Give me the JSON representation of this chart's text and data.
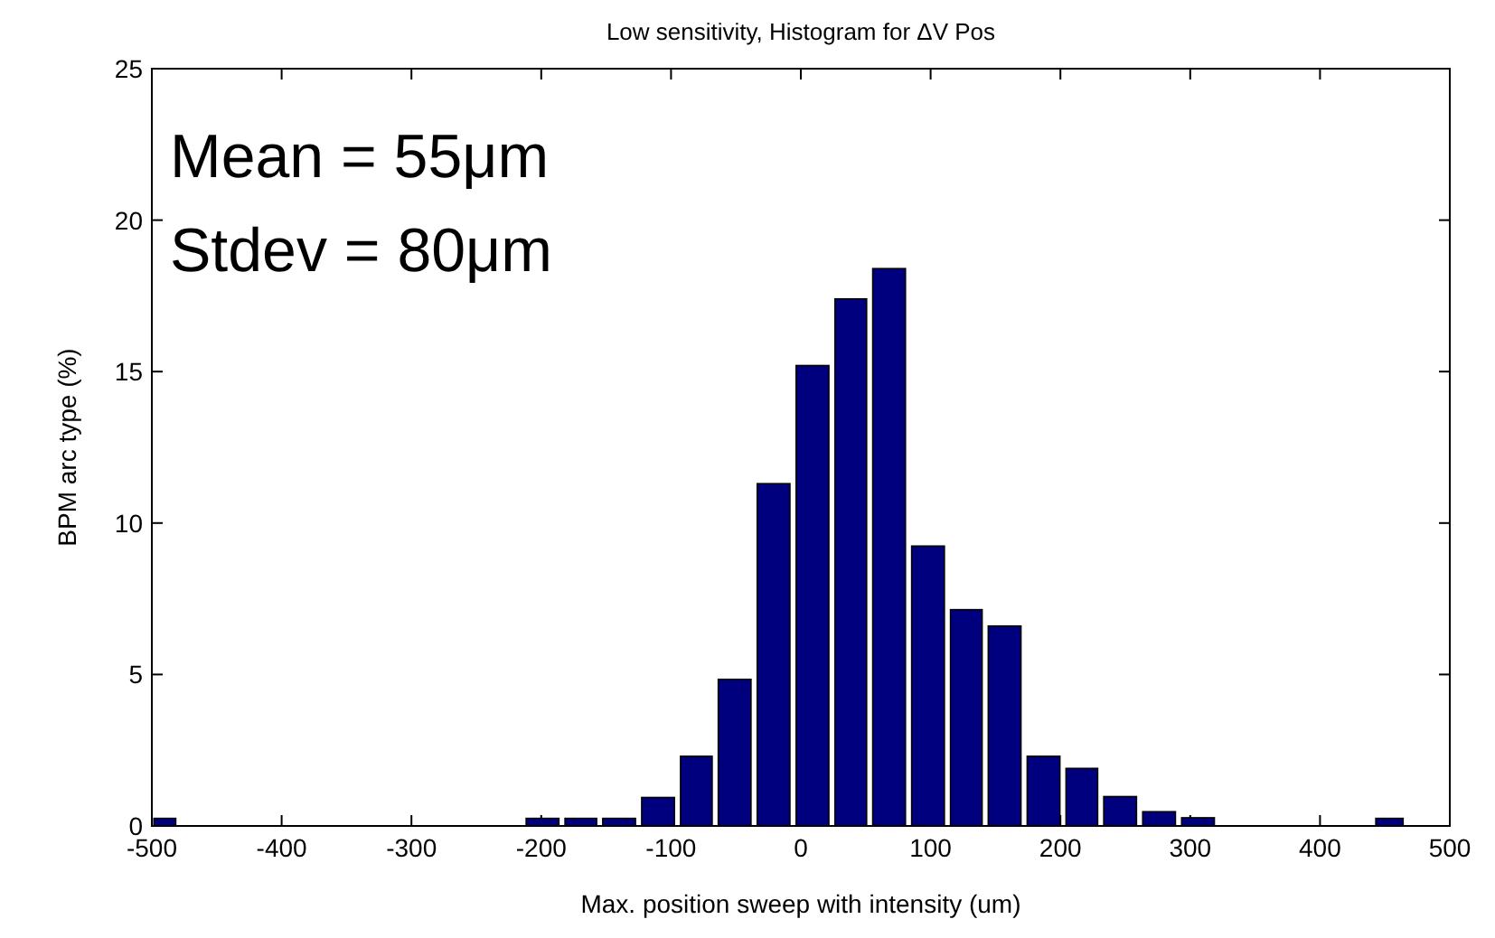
{
  "chart_data": {
    "type": "histogram",
    "title": "Low sensitivity, Histogram for ΔV Pos",
    "xlabel": "Max. position sweep with intensity (um)",
    "ylabel": "BPM arc type (%)",
    "annotations": [
      "Mean = 55μm",
      "Stdev = 80μm"
    ],
    "bins": [
      -500,
      -480,
      -214,
      -184,
      -155,
      -125,
      -95,
      -66,
      -36,
      -6,
      24,
      53,
      83,
      113,
      142,
      172,
      202,
      231,
      261,
      291,
      321,
      441,
      466
    ],
    "values": [
      0.25,
      0,
      0.25,
      0.25,
      0.25,
      0.94,
      2.3,
      4.84,
      11.3,
      15.2,
      17.4,
      18.4,
      9.24,
      7.14,
      6.6,
      2.3,
      1.9,
      0.97,
      0.47,
      0.27,
      0,
      0.25
    ],
    "color": "#00007f",
    "xlim": [
      -500,
      500
    ],
    "xticks": [
      -500,
      -400,
      -300,
      -200,
      -100,
      0,
      100,
      200,
      300,
      400,
      500
    ],
    "ylim": [
      0,
      25
    ],
    "yticks": [
      0,
      5,
      10,
      15,
      20,
      25
    ],
    "grid": false
  }
}
